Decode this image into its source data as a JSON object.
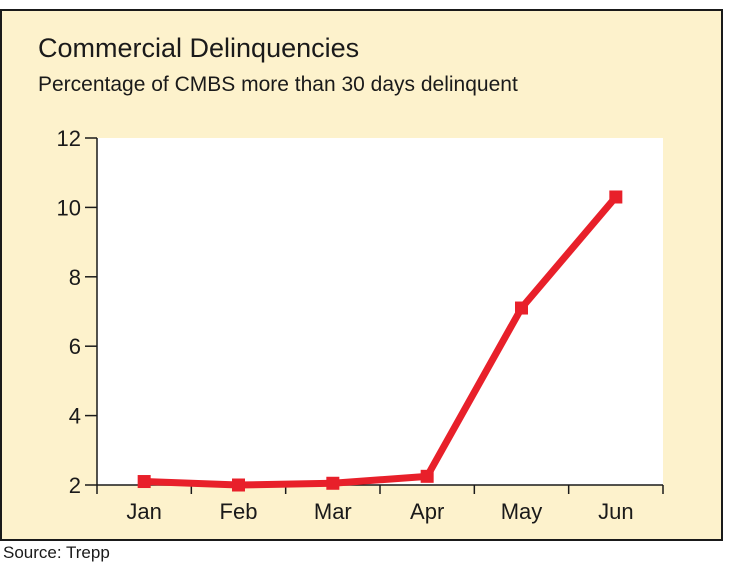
{
  "chart_data": {
    "type": "line",
    "title": "Commercial Delinquencies",
    "subtitle": "Percentage of CMBS more than 30 days delinquent",
    "categories": [
      "Jan",
      "Feb",
      "Mar",
      "Apr",
      "May",
      "Jun"
    ],
    "series": [
      {
        "values": [
          2.1,
          2.0,
          2.05,
          2.25,
          7.1,
          10.3
        ]
      }
    ],
    "ylim": [
      2,
      12
    ],
    "yticks": [
      "2",
      "4",
      "6",
      "8",
      "10",
      "12"
    ],
    "grid": false,
    "source": "Source: Trepp"
  },
  "colors": {
    "panel_background": "#fdf2cc",
    "plot_background": "#ffffff",
    "line": "#e8202a"
  }
}
